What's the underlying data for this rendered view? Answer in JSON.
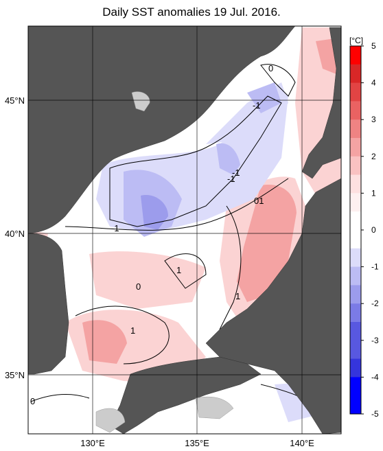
{
  "title": "Daily SST anomalies 19 Jul. 2016.",
  "colors": {
    "land": "#555555",
    "ice_or_lake": "#cccccc",
    "grid": "#000000",
    "positive_scale": [
      "#fde0e0",
      "#f9c2c2",
      "#f4a3a3",
      "#ef8383",
      "#ea6262",
      "#e24444",
      "#d92727",
      "#ff0000"
    ],
    "negative_scale": [
      "#dcdcfa",
      "#bcbcf4",
      "#9c9cec",
      "#7b7be6",
      "#5858e0",
      "#3535dc",
      "#0000ff"
    ]
  },
  "axes": {
    "lat_labels": [
      "45°N",
      "40°N",
      "35°N"
    ],
    "lon_labels": [
      "130°E",
      "135°E",
      "140°E"
    ]
  },
  "contour_labels": [
    "0",
    "-1",
    "-1",
    "-1",
    "01",
    "-1",
    "1",
    "1",
    "0",
    "1",
    "0"
  ],
  "colorbar": {
    "unit": "[°C]",
    "ticks": [
      "5",
      "4",
      "3",
      "2",
      "1",
      "0",
      "-1",
      "-2",
      "-3",
      "-4",
      "-5"
    ]
  }
}
